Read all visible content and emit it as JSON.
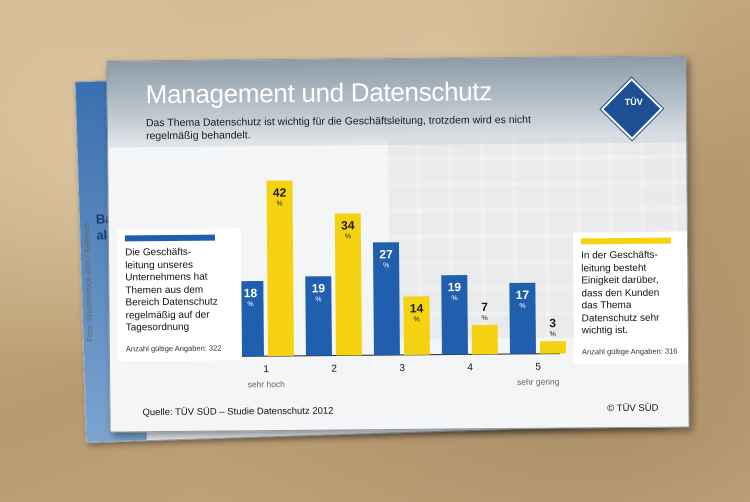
{
  "card": {
    "title": "Management und Datenschutz",
    "subtitle": "Das Thema Datenschutz ist wichtig für die Geschäftsleitung, trotzdem wird es nicht regelmäßig behandelt.",
    "logo_text": "TÜV",
    "source": "Quelle: TÜV SÜD – Studie Datenschutz 2012",
    "copyright": "© TÜV SÜD"
  },
  "back_card": {
    "side_text": "Ba\nal",
    "credit": "Foto: Shutterstock.com / Kalleruts"
  },
  "legend": {
    "left": {
      "text": "Die Geschäfts-\nleitung  unseres\nUnternehmens hat\nThemen aus dem\nBereich Datenschutz\nregelmäßig auf der\nTagesordnung",
      "note": "Anzahl gültige Angaben: 322"
    },
    "right": {
      "text": "In der Geschäfts-\nleitung besteht\nEinigkeit darüber,\ndass den Kunden\ndas Thema\nDatenschutz sehr\nwichtig ist.",
      "note": "Anzahl gültige Angaben: 316"
    }
  },
  "colors": {
    "blue": "#1f5fae",
    "yellow": "#f5d312",
    "text_blue": "#ffffff",
    "text_yellow": "#1b1b1b"
  },
  "chart_data": {
    "type": "bar",
    "categories": [
      "1",
      "2",
      "3",
      "4",
      "5"
    ],
    "category_sublabels": [
      "sehr hoch",
      "",
      "",
      "",
      "sehr gering"
    ],
    "series": [
      {
        "values": [
          18,
          19,
          27,
          19,
          17
        ]
      },
      {
        "values": [
          42,
          34,
          14,
          7,
          3
        ]
      }
    ],
    "value_unit": "%",
    "ylim": [
      0,
      45
    ],
    "grid": false
  }
}
